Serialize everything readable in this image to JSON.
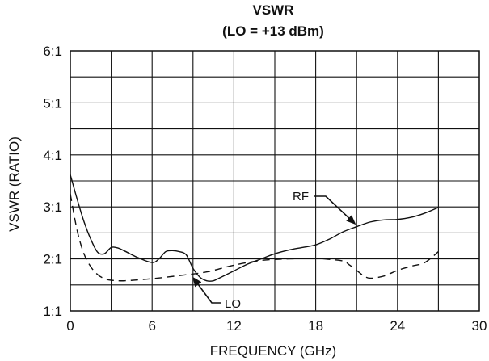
{
  "chart_data": {
    "type": "line",
    "title": "VSWR",
    "subtitle": "(LO = +13 dBm)",
    "xlabel": "FREQUENCY (GHz)",
    "ylabel": "VSWR (RATIO)",
    "xlim": [
      0,
      30
    ],
    "ylim": [
      1,
      6
    ],
    "x_ticks": [
      0,
      6,
      12,
      18,
      24,
      30
    ],
    "x_tick_labels": [
      "0",
      "6",
      "12",
      "18",
      "24",
      "30"
    ],
    "y_ticks": [
      1,
      2,
      3,
      4,
      5,
      6
    ],
    "y_tick_labels": [
      "1:1",
      "2:1",
      "3:1",
      "4:1",
      "5:1",
      "6:1"
    ],
    "grid": true,
    "series": [
      {
        "name": "RF",
        "style": "solid",
        "x": [
          0,
          0.5,
          1.0,
          1.5,
          2.0,
          2.5,
          3.0,
          3.5,
          4.0,
          5.0,
          6.0,
          6.5,
          7.0,
          7.5,
          8.0,
          8.5,
          9.0,
          9.5,
          10.0,
          10.5,
          11.0,
          12.0,
          13.0,
          14.0,
          15.0,
          16.0,
          17.0,
          18.0,
          19.0,
          20.0,
          21.0,
          22.0,
          23.0,
          24.0,
          25.0,
          26.0,
          27.0
        ],
        "y": [
          3.62,
          3.15,
          2.72,
          2.38,
          2.13,
          2.1,
          2.22,
          2.21,
          2.15,
          2.02,
          1.93,
          2.0,
          2.14,
          2.16,
          2.14,
          2.08,
          1.82,
          1.65,
          1.58,
          1.58,
          1.64,
          1.77,
          1.9,
          2.0,
          2.1,
          2.17,
          2.22,
          2.27,
          2.38,
          2.52,
          2.62,
          2.71,
          2.75,
          2.76,
          2.8,
          2.88,
          2.99
        ]
      },
      {
        "name": "LO",
        "style": "dashed",
        "x": [
          0,
          0.5,
          1.0,
          1.5,
          2.0,
          2.5,
          3.0,
          4.0,
          6.0,
          8.0,
          10.0,
          12.0,
          14.0,
          16.0,
          18.0,
          19.0,
          20.0,
          20.5,
          21.0,
          21.5,
          22.0,
          23.0,
          24.0,
          25.0,
          26.0,
          27.0
        ],
        "y": [
          3.25,
          2.55,
          2.1,
          1.85,
          1.7,
          1.62,
          1.59,
          1.58,
          1.62,
          1.68,
          1.75,
          1.88,
          1.97,
          2.0,
          2.01,
          1.99,
          1.96,
          1.88,
          1.78,
          1.68,
          1.63,
          1.67,
          1.78,
          1.86,
          1.93,
          2.14
        ]
      }
    ],
    "annotations": [
      {
        "text": "RF",
        "target_series": "RF",
        "target_x": 21.1,
        "target_y": 2.62
      },
      {
        "text": "LO",
        "target_series": "LO",
        "target_x": 8.8,
        "target_y": 1.71
      }
    ]
  }
}
